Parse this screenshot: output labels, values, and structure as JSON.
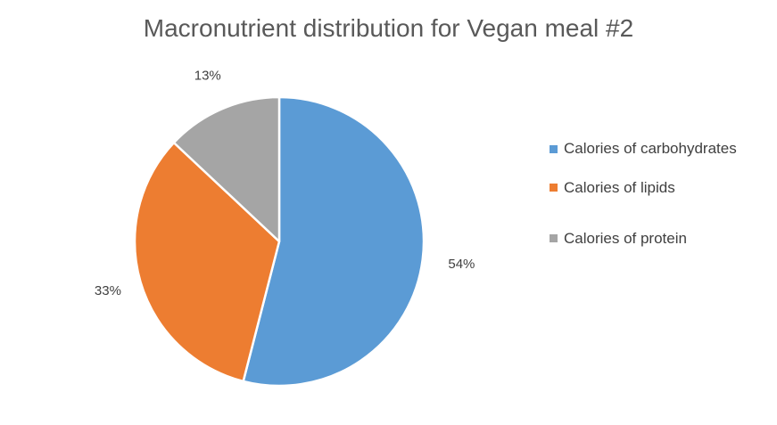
{
  "chart_data": {
    "type": "pie",
    "title": "Macronutrient distribution for Vegan meal #2",
    "categories": [
      "Calories of carbohydrates",
      "Calories of lipids",
      "Calories of protein"
    ],
    "values": [
      54,
      33,
      13
    ],
    "data_labels": [
      "54%",
      "33%",
      "13%"
    ],
    "colors": [
      "#5B9BD5",
      "#ED7D31",
      "#A5A5A5"
    ],
    "legend_position": "right"
  }
}
